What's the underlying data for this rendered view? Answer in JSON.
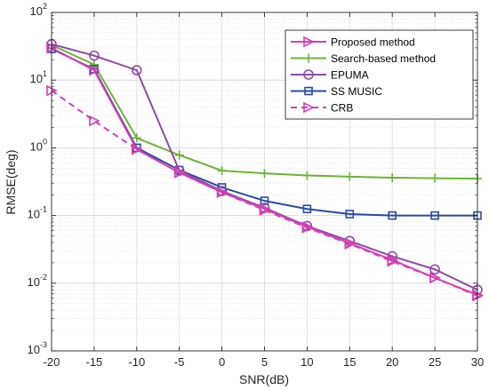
{
  "chart_data": {
    "type": "line",
    "xlabel": "SNR(dB)",
    "ylabel": "RMSE(deg)",
    "xlim": [
      -20,
      30
    ],
    "ylim": [
      0.001,
      100
    ],
    "yscale": "log",
    "grid": true,
    "legend_position": "top-right",
    "x_ticks": [
      "-20",
      "-15",
      "-10",
      "-5",
      "0",
      "5",
      "10",
      "15",
      "20",
      "25",
      "30"
    ],
    "y_ticks": [
      {
        "base": "10",
        "exp": "-3"
      },
      {
        "base": "10",
        "exp": "-2"
      },
      {
        "base": "10",
        "exp": "-1"
      },
      {
        "base": "10",
        "exp": "0"
      },
      {
        "base": "10",
        "exp": "1"
      },
      {
        "base": "10",
        "exp": "2"
      }
    ],
    "x": [
      -20,
      -15,
      -10,
      -5,
      0,
      5,
      10,
      15,
      20,
      25,
      30
    ],
    "series": [
      {
        "name": "Proposed method",
        "color": "#d63fb3",
        "marker": "triangle-right",
        "dash": false,
        "values": [
          30,
          14,
          0.95,
          0.43,
          0.22,
          0.125,
          0.068,
          0.039,
          0.022,
          0.012,
          0.0067
        ]
      },
      {
        "name": "Search-based method",
        "color": "#6bb434",
        "marker": "plus",
        "dash": false,
        "values": [
          33,
          17,
          1.4,
          0.78,
          0.46,
          0.42,
          0.39,
          0.375,
          0.362,
          0.356,
          0.35
        ]
      },
      {
        "name": "EPUMA",
        "color": "#8d4ba8",
        "marker": "circle",
        "dash": false,
        "values": [
          34,
          23,
          14,
          0.46,
          0.23,
          0.13,
          0.07,
          0.042,
          0.025,
          0.016,
          0.008
        ]
      },
      {
        "name": "SS MUSIC",
        "color": "#2b4aa3",
        "marker": "square",
        "dash": false,
        "values": [
          29,
          14.5,
          1.0,
          0.47,
          0.26,
          0.165,
          0.125,
          0.105,
          0.1,
          0.1,
          0.1
        ]
      },
      {
        "name": "CRB",
        "color": "#d63fb3",
        "marker": "triangle-right",
        "dash": true,
        "values": [
          7.0,
          2.5,
          0.95,
          0.43,
          0.22,
          0.12,
          0.066,
          0.038,
          0.021,
          0.012,
          0.0065
        ]
      }
    ]
  }
}
